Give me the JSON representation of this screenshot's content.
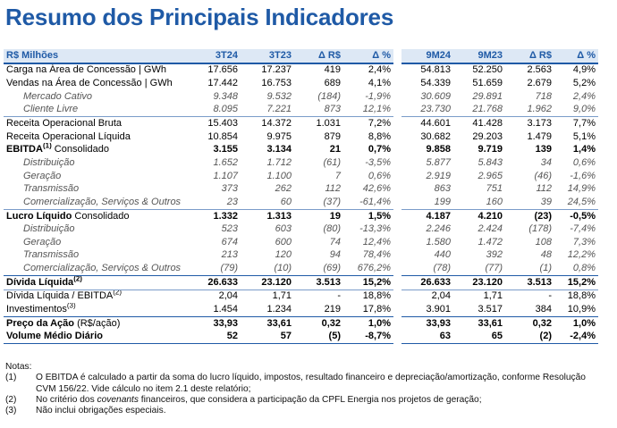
{
  "title": "Resumo dos Principais Indicadores",
  "header": [
    "R$ Milhões",
    "3T24",
    "3T23",
    "Δ R$",
    "Δ %",
    "9M24",
    "9M23",
    "Δ R$",
    "Δ %"
  ],
  "rows": [
    {
      "label": "Carga na Área de Concessão | GWh",
      "sup": "",
      "suffix": "",
      "cells": [
        "17.656",
        "17.237",
        "419",
        "2,4%",
        "54.813",
        "52.250",
        "2.563",
        "4,9%"
      ]
    },
    {
      "label": "Vendas na Área de Concessão | GWh",
      "sup": "",
      "suffix": "",
      "cells": [
        "17.442",
        "16.753",
        "689",
        "4,1%",
        "54.339",
        "51.659",
        "2.679",
        "5,2%"
      ]
    },
    {
      "label": "Mercado Cativo",
      "sup": "",
      "suffix": "",
      "cells": [
        "9.348",
        "9.532",
        "(184)",
        "-1,9%",
        "30.609",
        "29.891",
        "718",
        "2,4%"
      ]
    },
    {
      "label": "Cliente Livre",
      "sup": "",
      "suffix": "",
      "cells": [
        "8.095",
        "7.221",
        "873",
        "12,1%",
        "23.730",
        "21.768",
        "1.962",
        "9,0%"
      ]
    },
    {
      "label": "Receita Operacional Bruta",
      "sup": "",
      "suffix": "",
      "cells": [
        "15.403",
        "14.372",
        "1.031",
        "7,2%",
        "44.601",
        "41.428",
        "3.173",
        "7,7%"
      ]
    },
    {
      "label": "Receita Operacional Líquida",
      "sup": "",
      "suffix": "",
      "cells": [
        "10.854",
        "9.975",
        "879",
        "8,8%",
        "30.682",
        "29.203",
        "1.479",
        "5,1%"
      ]
    },
    {
      "label": "EBITDA",
      "sup": "(1)",
      "suffix": " Consolidado",
      "cells": [
        "3.155",
        "3.134",
        "21",
        "0,7%",
        "9.858",
        "9.719",
        "139",
        "1,4%"
      ]
    },
    {
      "label": "Distribuição",
      "sup": "",
      "suffix": "",
      "cells": [
        "1.652",
        "1.712",
        "(61)",
        "-3,5%",
        "5.877",
        "5.843",
        "34",
        "0,6%"
      ]
    },
    {
      "label": "Geração",
      "sup": "",
      "suffix": "",
      "cells": [
        "1.107",
        "1.100",
        "7",
        "0,6%",
        "2.919",
        "2.965",
        "(46)",
        "-1,6%"
      ]
    },
    {
      "label": "Transmissão",
      "sup": "",
      "suffix": "",
      "cells": [
        "373",
        "262",
        "112",
        "42,6%",
        "863",
        "751",
        "112",
        "14,9%"
      ]
    },
    {
      "label": "Comercialização, Serviços & Outros",
      "sup": "",
      "suffix": "",
      "cells": [
        "23",
        "60",
        "(37)",
        "-61,4%",
        "199",
        "160",
        "39",
        "24,5%"
      ]
    },
    {
      "label": "Lucro Líquido",
      "sup": "",
      "suffix": " Consolidado",
      "cells": [
        "1.332",
        "1.313",
        "19",
        "1,5%",
        "4.187",
        "4.210",
        "(23)",
        "-0,5%"
      ]
    },
    {
      "label": "Distribuição",
      "sup": "",
      "suffix": "",
      "cells": [
        "523",
        "603",
        "(80)",
        "-13,3%",
        "2.246",
        "2.424",
        "(178)",
        "-7,4%"
      ]
    },
    {
      "label": "Geração",
      "sup": "",
      "suffix": "",
      "cells": [
        "674",
        "600",
        "74",
        "12,4%",
        "1.580",
        "1.472",
        "108",
        "7,3%"
      ]
    },
    {
      "label": "Transmissão",
      "sup": "",
      "suffix": "",
      "cells": [
        "213",
        "120",
        "94",
        "78,4%",
        "440",
        "392",
        "48",
        "12,2%"
      ]
    },
    {
      "label": "Comercialização, Serviços & Outros",
      "sup": "",
      "suffix": "",
      "cells": [
        "(79)",
        "(10)",
        "(69)",
        "676,2%",
        "(78)",
        "(77)",
        "(1)",
        "0,8%"
      ]
    },
    {
      "label": "Dívida Líquida",
      "sup": "(2)",
      "suffix": "",
      "cells": [
        "26.633",
        "23.120",
        "3.513",
        "15,2%",
        "26.633",
        "23.120",
        "3.513",
        "15,2%"
      ]
    },
    {
      "label": "Dívida Líquida / EBITDA",
      "sup": "(2)",
      "suffix": "",
      "cells": [
        "2,04",
        "1,71",
        "-",
        "18,8%",
        "2,04",
        "1,71",
        "-",
        "18,8%"
      ]
    },
    {
      "label": "Investimentos",
      "sup": "(3)",
      "suffix": "",
      "cells": [
        "1.454",
        "1.234",
        "219",
        "17,8%",
        "3.901",
        "3.517",
        "384",
        "10,9%"
      ]
    },
    {
      "label": "Preço da Ação",
      "sup": "",
      "suffix": " (R$/ação)",
      "cells": [
        "33,93",
        "33,61",
        "0,32",
        "1,0%",
        "33,93",
        "33,61",
        "0,32",
        "1,0%"
      ]
    },
    {
      "label": "Volume Médio Diário",
      "sup": "",
      "suffix": "",
      "cells": [
        "52",
        "57",
        "(5)",
        "-8,7%",
        "63",
        "65",
        "(2)",
        "-2,4%"
      ]
    }
  ],
  "notes": {
    "heading": "Notas:",
    "items": [
      {
        "num": "(1)",
        "pre": "O EBITDA é calculado a partir da soma do lucro líquido, impostos, resultado financeiro e depreciação/amortização, conforme Resolução CVM 156/22. Vide cálculo no item 2.1 deste relatório;",
        "em": "",
        "post": ""
      },
      {
        "num": "(2)",
        "pre": "No critério dos ",
        "em": "covenants",
        "post": " financeiros, que considera a participação da CPFL Energia nos projetos de geração;"
      },
      {
        "num": "(3)",
        "pre": "Não inclui obrigações especiais.",
        "em": "",
        "post": ""
      }
    ]
  }
}
